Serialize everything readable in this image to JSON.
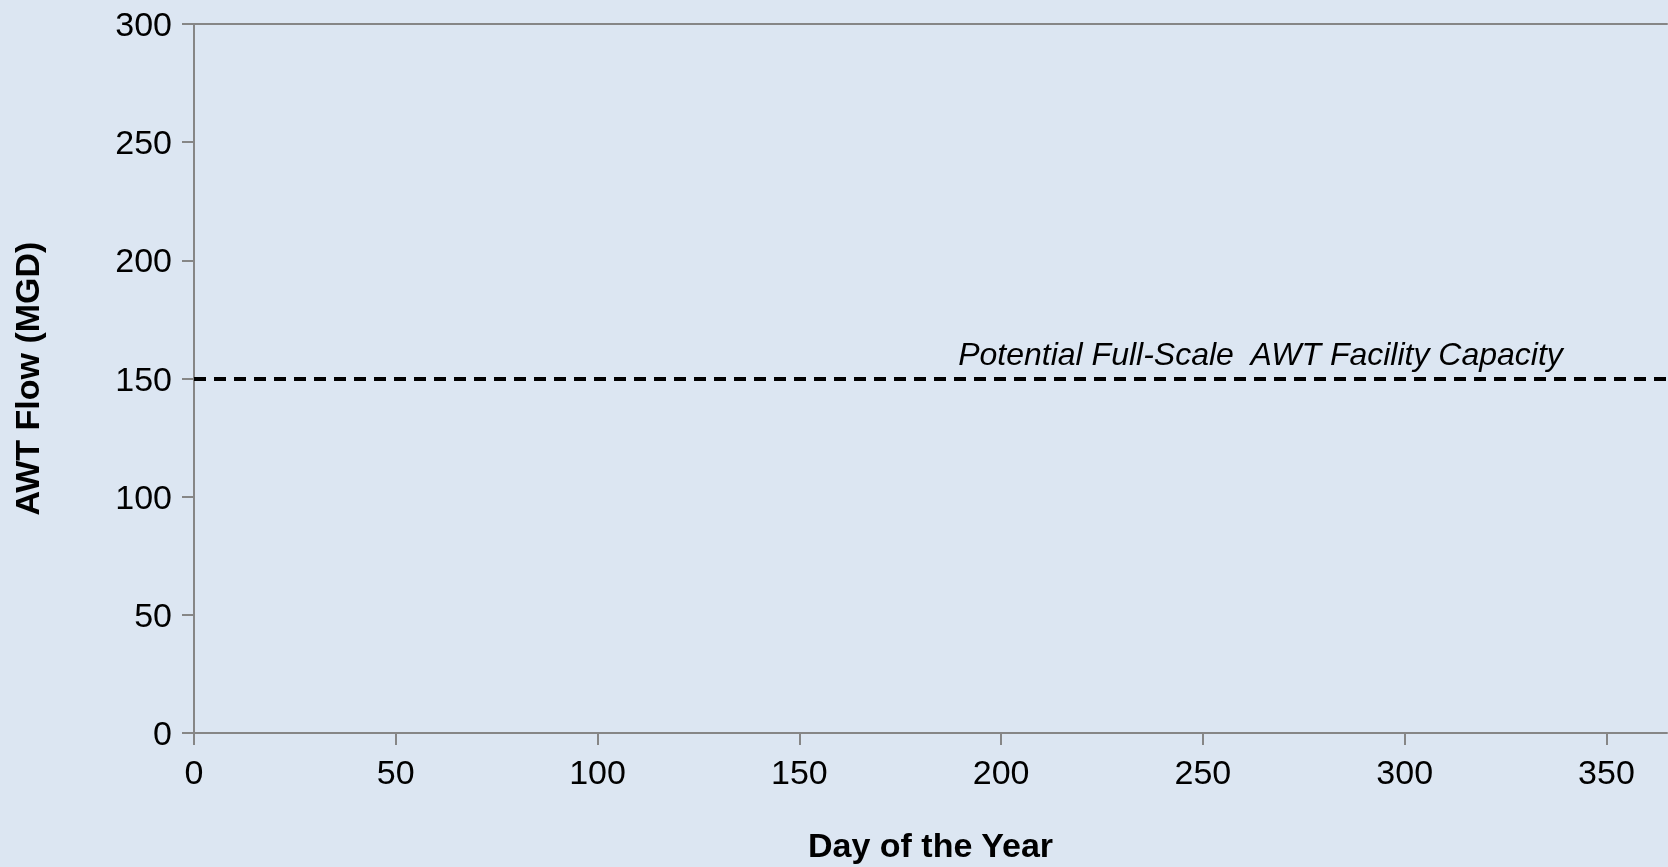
{
  "chart_data": {
    "type": "line",
    "xlabel": "Day of the Year",
    "ylabel": "AWT Flow (MGD)",
    "xlim": [
      0,
      365
    ],
    "xticks": [
      0,
      50,
      100,
      150,
      200,
      250,
      300,
      350
    ],
    "ylim": [
      0,
      300
    ],
    "yticks": [
      0,
      50,
      100,
      150,
      200,
      250,
      300
    ],
    "ref_lines": [
      {
        "axis": "y",
        "value": 150,
        "label": "Potential Full-Scale  AWT Facility Capacity",
        "color": "#000000",
        "line_style": "dashed"
      }
    ],
    "grid": false
  }
}
